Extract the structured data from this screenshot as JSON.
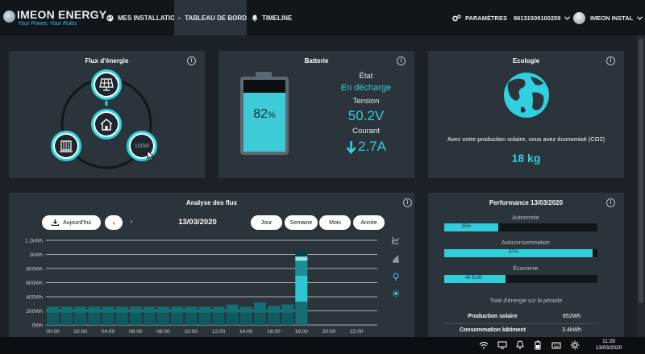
{
  "header": {
    "logo_name": "IMEON ENERGY",
    "logo_tagline": "Your Power, Your Rules",
    "nav": [
      {
        "label": "MES INSTALLATIONS",
        "icon": "globe-icon"
      },
      {
        "label": "TABLEAU DE BORD",
        "icon": "monitor-icon",
        "active": true
      },
      {
        "label": "TIMELINE",
        "icon": "bell-icon"
      }
    ],
    "settings_label": "PARAMÈTRES",
    "serial": "96131509100259",
    "user_name": "IMEON INSTAL"
  },
  "flux": {
    "title": "Flux d'énergie",
    "grid_value": "100W"
  },
  "battery": {
    "title": "Batterie",
    "level_percent": 82,
    "percent_text": "82",
    "percent_sign": "%",
    "state_label": "État",
    "state_value": "En décharge",
    "voltage_label": "Tension",
    "voltage_value": "50.2V",
    "current_label": "Courant",
    "current_value": "2.7A"
  },
  "ecology": {
    "title": "Ecologie",
    "text": "Avec votre production solaire, vous avez économisé (CO2)",
    "value": "18 kg"
  },
  "analysis": {
    "title": "Analyse des flux",
    "today_label": "Aujourd'hui",
    "prev_label": "‹",
    "next_label": "›",
    "date": "13/03/2020",
    "periods": [
      "Jour",
      "Semaine",
      "Mois",
      "Année"
    ]
  },
  "chart_data": {
    "type": "bar",
    "y_tick_labels": [
      "0Wh",
      "200Wh",
      "400Wh",
      "600Wh",
      "800Wh",
      "1kWh",
      "1.2kWh"
    ],
    "y_tick_values": [
      0,
      200,
      400,
      600,
      800,
      1000,
      1200
    ],
    "ylim": [
      0,
      1200
    ],
    "x_tick_labels": [
      "00:00",
      "02:00",
      "04:00",
      "06:00",
      "08:00",
      "10:00",
      "12:00",
      "14:00",
      "16:00",
      "18:00",
      "20:00",
      "22:00"
    ],
    "grid": true,
    "bins": 24,
    "series": [
      {
        "values": [
          170,
          170,
          170,
          170,
          170,
          170,
          170,
          170,
          170,
          170,
          170,
          170,
          170,
          170,
          170,
          170,
          170,
          170,
          0,
          0,
          0,
          0,
          0,
          0
        ],
        "color": "#0d5a5f"
      },
      {
        "values": [
          90,
          90,
          90,
          90,
          90,
          90,
          90,
          90,
          90,
          90,
          90,
          90,
          90,
          120,
          90,
          150,
          100,
          120,
          330,
          0,
          0,
          0,
          0,
          0
        ],
        "color": "#136f75"
      },
      {
        "values": [
          0,
          0,
          0,
          0,
          0,
          0,
          0,
          0,
          0,
          0,
          0,
          0,
          0,
          0,
          0,
          0,
          0,
          0,
          370,
          0,
          0,
          0,
          0,
          0
        ],
        "color": "#2fc6d2"
      },
      {
        "values": [
          0,
          0,
          0,
          0,
          0,
          0,
          0,
          0,
          0,
          0,
          0,
          0,
          0,
          0,
          0,
          0,
          0,
          0,
          210,
          0,
          0,
          0,
          0,
          0
        ],
        "color": "#1a8f96"
      },
      {
        "values": [
          0,
          0,
          0,
          0,
          0,
          0,
          0,
          0,
          0,
          0,
          0,
          0,
          0,
          0,
          0,
          0,
          0,
          0,
          60,
          0,
          0,
          0,
          0,
          0
        ],
        "color": "#8fe4ea"
      },
      {
        "values": [
          0,
          0,
          0,
          0,
          0,
          0,
          0,
          0,
          0,
          0,
          0,
          0,
          0,
          0,
          0,
          0,
          0,
          0,
          100,
          0,
          0,
          0,
          0,
          0
        ],
        "color": "#0a3f43"
      }
    ]
  },
  "performance": {
    "title": "Performance 13/03/2020",
    "bars": [
      {
        "label": "Autonomie",
        "value": 35,
        "text": "35%"
      },
      {
        "label": "Autoconsommation",
        "value": 97,
        "text": "97%"
      },
      {
        "label": "Économie",
        "value": 40,
        "text": "40 EUR"
      }
    ],
    "energy_title": "Total d'énergie sur la période",
    "energy_rows": [
      {
        "label": "Production solaire",
        "value": "852Wh"
      },
      {
        "label": "Consommation bâtiment",
        "value": "3.4kWh"
      }
    ]
  },
  "taskbar": {
    "time": "11:28",
    "date": "13/03/2020"
  },
  "colors": {
    "accent": "#30d0de",
    "panel": "#2b333b",
    "background": "#1b2127"
  }
}
